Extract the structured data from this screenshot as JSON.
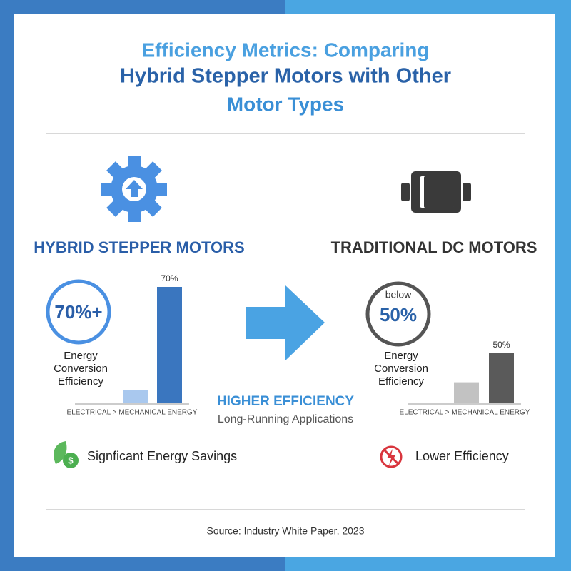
{
  "title": [
    "Efficiency Metrics: Comparing",
    "Hybrid Stepper Motors with Other",
    "Motor Types"
  ],
  "left": {
    "heading": "HYBRID STEPPER MOTORS",
    "badge": [
      "70%+"
    ],
    "caption": [
      "Energy",
      "Conversion",
      "Efficiency"
    ],
    "bars": {
      "values": [
        8,
        70
      ],
      "value_labels": [
        null,
        "70%"
      ]
    },
    "axis_label": "ELECTRICAL > MECHANICAL ENERGY",
    "benefit": "Signficant Energy Savings"
  },
  "middle": {
    "headline": "HIGHER EFFICIENCY",
    "subtext": "Long-Running Applications"
  },
  "right": {
    "heading": "TRADITIONAL DC MOTORS",
    "badge": [
      "below",
      "50%"
    ],
    "caption": [
      "Energy",
      "Conversion",
      "Efficiency"
    ],
    "bars": {
      "values": [
        21,
        50
      ],
      "value_labels": [
        null,
        "50%"
      ]
    },
    "axis_label": "ELECTRICAL > MECHANICAL ENERGY",
    "benefit": "Lower Efficiency"
  },
  "source": "Source: Industry White Paper, 2023"
}
